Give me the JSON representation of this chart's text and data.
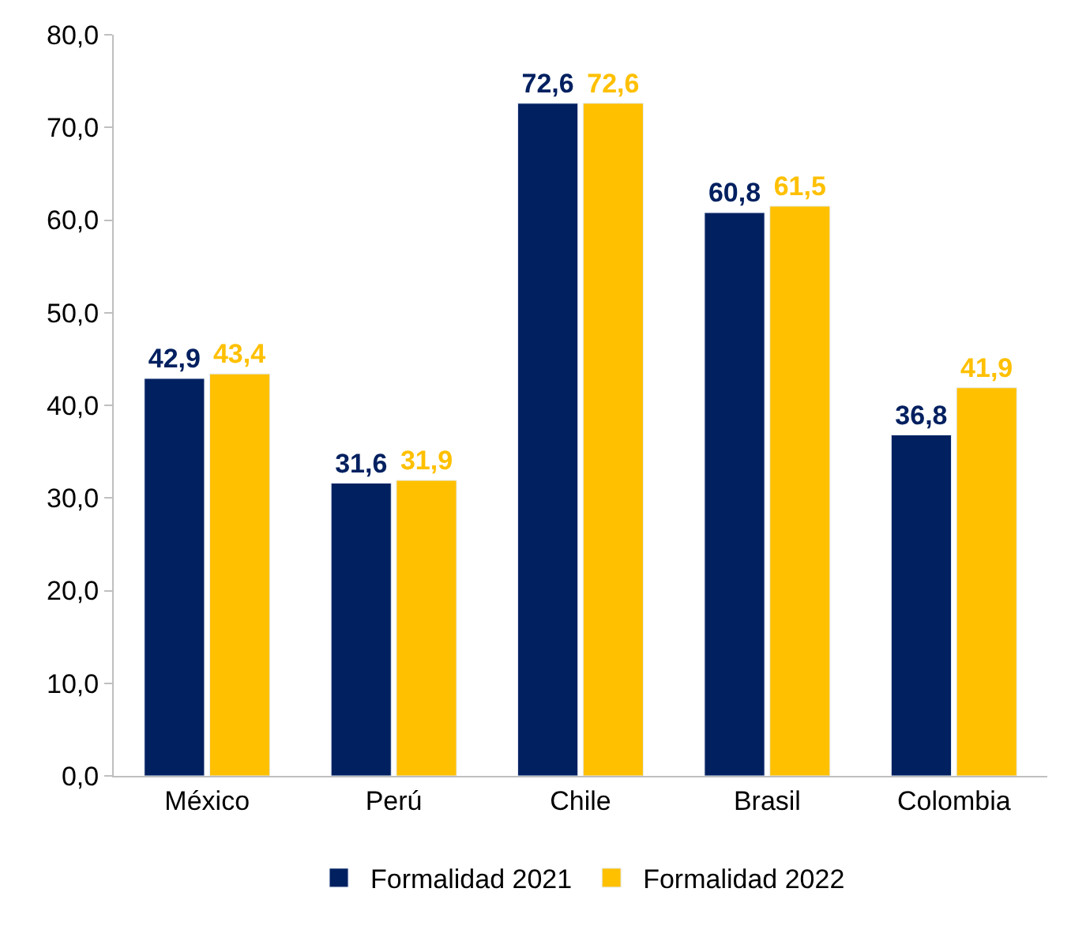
{
  "chart_data": {
    "type": "bar",
    "categories": [
      "México",
      "Perú",
      "Chile",
      "Brasil",
      "Colombia"
    ],
    "series": [
      {
        "name": "Formalidad 2021",
        "color": "#002060",
        "values": [
          42.9,
          31.6,
          72.6,
          60.8,
          36.8
        ],
        "value_labels": [
          "42,9",
          "31,6",
          "72,6",
          "60,8",
          "36,8"
        ]
      },
      {
        "name": "Formalidad 2022",
        "color": "#ffc000",
        "values": [
          43.4,
          31.9,
          72.6,
          61.5,
          41.9
        ],
        "value_labels": [
          "43,4",
          "31,9",
          "72,6",
          "61,5",
          "41,9"
        ]
      }
    ],
    "ylim": [
      0,
      80
    ],
    "yticks": [
      {
        "value": 0,
        "label": "0,0"
      },
      {
        "value": 10,
        "label": "10,0"
      },
      {
        "value": 20,
        "label": "20,0"
      },
      {
        "value": 30,
        "label": "30,0"
      },
      {
        "value": 40,
        "label": "40,0"
      },
      {
        "value": 50,
        "label": "50,0"
      },
      {
        "value": 60,
        "label": "60,0"
      },
      {
        "value": 70,
        "label": "70,0"
      },
      {
        "value": 80,
        "label": "80,0"
      }
    ],
    "legend": "bottom"
  }
}
